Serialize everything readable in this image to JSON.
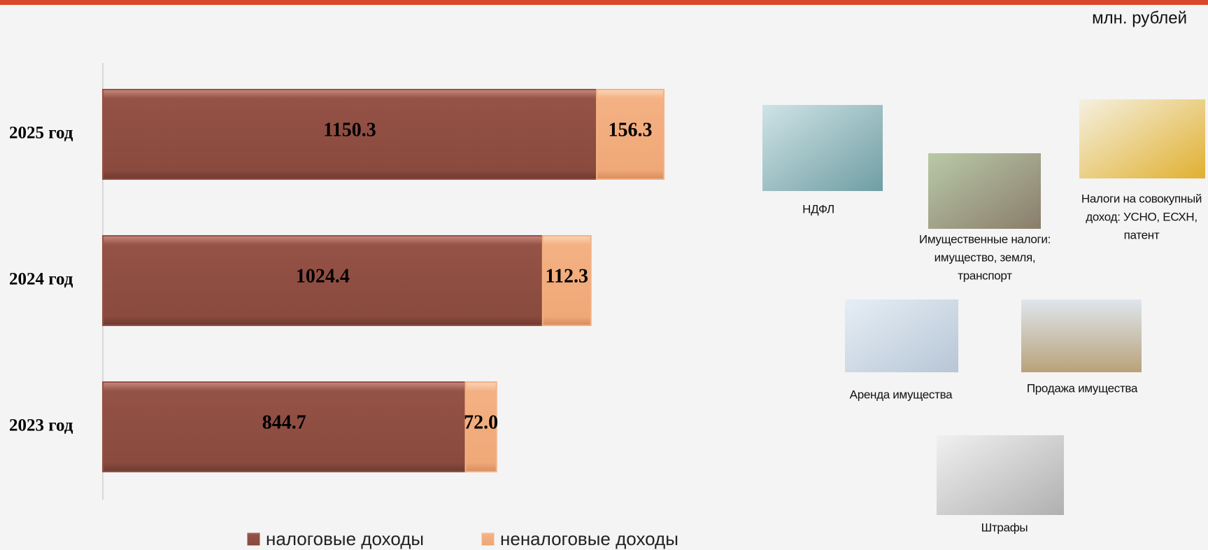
{
  "chart_data": {
    "type": "bar",
    "orientation": "horizontal",
    "stacked": true,
    "unit_label": "млн. рублей",
    "categories": [
      "2025 год",
      "2024 год",
      "2023 год"
    ],
    "series": [
      {
        "name": "налоговые доходы",
        "color": "#955246",
        "values": [
          1150.3,
          1024.4,
          844.7
        ]
      },
      {
        "name": "неналоговые доходы",
        "color": "#f4b183",
        "values": [
          156.3,
          112.3,
          72.0
        ],
        "value_labels": [
          "156.3",
          "112.3",
          "72.0"
        ]
      }
    ]
  },
  "illustrations": [
    {
      "caption": [
        "НДФЛ"
      ]
    },
    {
      "caption": [
        "Имущественные налоги:",
        "имущество, земля,",
        "транспорт"
      ]
    },
    {
      "caption": [
        "Налоги на совокупный",
        "доход: УСНО, ЕСХН,",
        "патент"
      ]
    },
    {
      "caption": [
        "Аренда имущества"
      ]
    },
    {
      "caption": [
        "Продажа имущества"
      ]
    },
    {
      "caption": [
        "Штрафы"
      ]
    }
  ]
}
